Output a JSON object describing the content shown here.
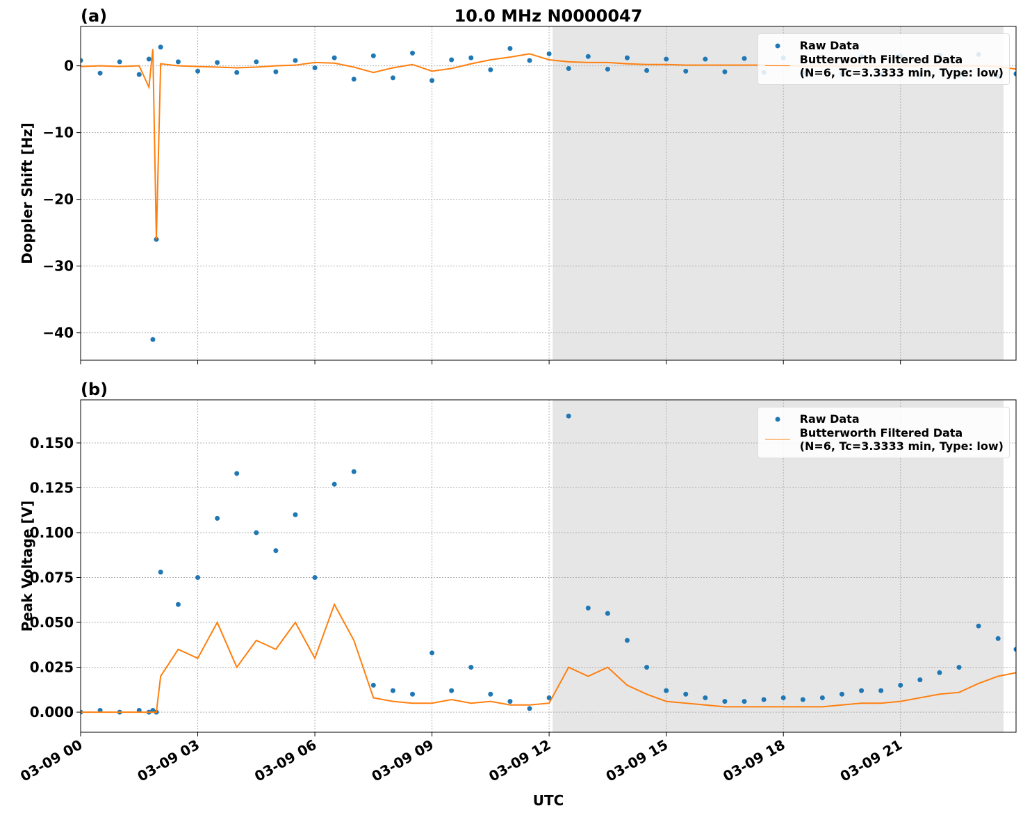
{
  "chart_data": [
    {
      "type": "scatter-line",
      "label": "(a)",
      "title": "10.0 MHz N0000047",
      "ylabel": "Doppler Shift [Hz]",
      "x": [
        0,
        0.5,
        1,
        1.5,
        1.75,
        1.85,
        1.94,
        2.05,
        2.5,
        3,
        3.5,
        4,
        4.5,
        5,
        5.5,
        6,
        6.5,
        7,
        7.5,
        8,
        8.5,
        9,
        9.5,
        10,
        10.5,
        11,
        11.5,
        12,
        12.5,
        13,
        13.5,
        14,
        14.5,
        15,
        15.5,
        16,
        16.5,
        17,
        17.5,
        18,
        18.5,
        19,
        19.5,
        20,
        20.5,
        21,
        21.5,
        22,
        22.5,
        23,
        23.5,
        23.96
      ],
      "series": [
        {
          "name": "Raw Data",
          "color": "#1f77b4",
          "marker": "dot",
          "values": [
            0.8,
            -1.1,
            0.6,
            -1.3,
            1,
            -41,
            -26,
            2.8,
            0.6,
            -0.8,
            0.5,
            -1,
            0.6,
            -0.9,
            0.8,
            -0.3,
            1.2,
            -2,
            1.5,
            -1.8,
            1.9,
            -2.2,
            0.9,
            1.2,
            -0.6,
            2.6,
            0.8,
            1.8,
            -0.4,
            1.4,
            -0.5,
            1.2,
            -0.7,
            1,
            -0.8,
            1,
            -0.9,
            1.1,
            -1,
            1.2,
            -1.1,
            1.3,
            -1.2,
            1.4,
            -1.3,
            1.5,
            -1.4,
            1.6,
            -1.5,
            1.7,
            -1.6,
            -1.2
          ]
        },
        {
          "name": "Butterworth Filtered Data\n(N=6, Tc=3.3333 min, Type: low)",
          "color": "#ff7f0e",
          "marker": "line",
          "values": [
            -0.1,
            0,
            -0.1,
            0,
            -3.2,
            2.5,
            -26,
            0.3,
            0,
            -0.1,
            -0.2,
            -0.3,
            -0.2,
            0,
            0.1,
            0.5,
            0.4,
            -0.2,
            -1,
            -0.3,
            0.2,
            -0.8,
            -0.4,
            0.3,
            0.9,
            1.3,
            1.8,
            0.9,
            0.6,
            0.5,
            0.5,
            0.3,
            0.2,
            0.2,
            0.1,
            0.1,
            0.1,
            0.1,
            0.1,
            0,
            0,
            0,
            0,
            0,
            0,
            0,
            0,
            0,
            0,
            0,
            -0.1,
            -0.5
          ]
        }
      ],
      "xlim": [
        0,
        23.96
      ],
      "xticks": [
        0,
        3,
        6,
        9,
        12,
        15,
        18,
        21
      ],
      "ylim": [
        -44.1,
        5.9
      ],
      "yticks": [
        {
          "value": -40,
          "label": "−40"
        },
        {
          "value": -30,
          "label": "−30"
        },
        {
          "value": -20,
          "label": "−20"
        },
        {
          "value": -10,
          "label": "−10"
        },
        0
      ],
      "shade": [
        12.09,
        23.64
      ],
      "grid": true,
      "legend": "upper right"
    },
    {
      "type": "scatter-line",
      "label": "(b)",
      "ylabel": "Peak Voltage [V]",
      "xlabel": "UTC",
      "x": [
        0,
        0.5,
        1,
        1.5,
        1.75,
        1.85,
        1.94,
        2.05,
        2.5,
        3,
        3.5,
        4,
        4.5,
        5,
        5.5,
        6,
        6.5,
        7,
        7.5,
        8,
        8.5,
        9,
        9.5,
        10,
        10.5,
        11,
        11.5,
        12,
        12.5,
        13,
        13.5,
        14,
        14.5,
        15,
        15.5,
        16,
        16.5,
        17,
        17.5,
        18,
        18.5,
        19,
        19.5,
        20,
        20.5,
        21,
        21.5,
        22,
        22.5,
        23,
        23.5,
        23.96
      ],
      "series": [
        {
          "name": "Raw Data",
          "color": "#1f77b4",
          "marker": "dot",
          "values": [
            0,
            0.001,
            0,
            0.001,
            0,
            0.001,
            0,
            0.078,
            0.06,
            0.075,
            0.108,
            0.133,
            0.1,
            0.09,
            0.11,
            0.075,
            0.127,
            0.134,
            0.015,
            0.012,
            0.01,
            0.033,
            0.012,
            0.025,
            0.01,
            0.006,
            0.002,
            0.008,
            0.165,
            0.058,
            0.055,
            0.04,
            0.025,
            0.012,
            0.01,
            0.008,
            0.006,
            0.006,
            0.007,
            0.008,
            0.007,
            0.008,
            0.01,
            0.012,
            0.012,
            0.015,
            0.018,
            0.022,
            0.025,
            0.048,
            0.041,
            0.035
          ]
        },
        {
          "name": "Butterworth Filtered Data\n(N=6, Tc=3.3333 min, Type: low)",
          "color": "#ff7f0e",
          "marker": "line",
          "values": [
            0,
            0,
            0,
            0,
            0,
            0,
            0,
            0.02,
            0.035,
            0.03,
            0.05,
            0.025,
            0.04,
            0.035,
            0.05,
            0.03,
            0.06,
            0.04,
            0.008,
            0.006,
            0.005,
            0.005,
            0.007,
            0.005,
            0.006,
            0.004,
            0.004,
            0.005,
            0.025,
            0.02,
            0.025,
            0.015,
            0.01,
            0.006,
            0.005,
            0.004,
            0.003,
            0.003,
            0.003,
            0.003,
            0.003,
            0.003,
            0.004,
            0.005,
            0.005,
            0.006,
            0.008,
            0.01,
            0.011,
            0.016,
            0.02,
            0.022
          ]
        }
      ],
      "xlim": [
        0,
        23.96
      ],
      "xticks": [
        {
          "value": 0,
          "label": "03-09 00"
        },
        {
          "value": 3,
          "label": "03-09 03"
        },
        {
          "value": 6,
          "label": "03-09 06"
        },
        {
          "value": 9,
          "label": "03-09 09"
        },
        {
          "value": 12,
          "label": "03-09 12"
        },
        {
          "value": 15,
          "label": "03-09 15"
        },
        {
          "value": 18,
          "label": "03-09 18"
        },
        {
          "value": 21,
          "label": "03-09 21"
        }
      ],
      "ylim": [
        -0.0112,
        0.174
      ],
      "yticks": [
        {
          "value": 0,
          "label": "0.000"
        },
        {
          "value": 0.025,
          "label": "0.025"
        },
        {
          "value": 0.05,
          "label": "0.050"
        },
        {
          "value": 0.075,
          "label": "0.075"
        },
        {
          "value": 0.1,
          "label": "0.100"
        },
        {
          "value": 0.125,
          "label": "0.125"
        },
        {
          "value": 0.15,
          "label": "0.150"
        }
      ],
      "shade": [
        12.09,
        23.64
      ],
      "grid": true,
      "legend": "upper right"
    }
  ]
}
